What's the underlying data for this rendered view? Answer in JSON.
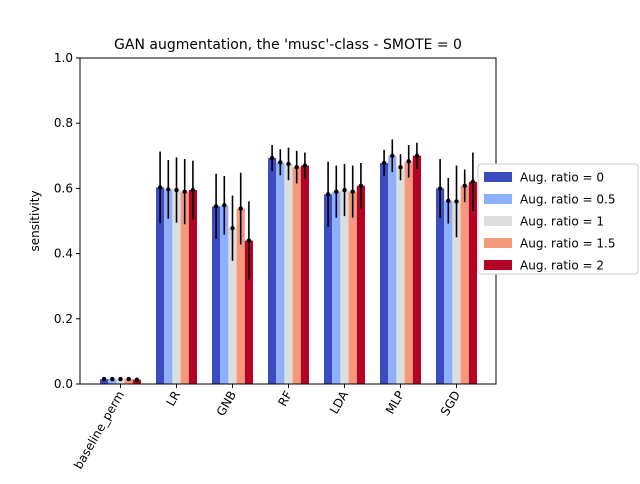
{
  "chart_data": {
    "type": "bar",
    "title": "GAN augmentation, the 'musc'-class - SMOTE = 0",
    "xlabel": "",
    "ylabel": "sensitivity",
    "ylim": [
      0,
      1.0
    ],
    "yticks": [
      "0.0",
      "0.2",
      "0.4",
      "0.6",
      "0.8",
      "1.0"
    ],
    "categories": [
      "baseline_perm",
      "LR",
      "GNB",
      "RF",
      "LDA",
      "MLP",
      "SGD"
    ],
    "legend_position": "outside-right",
    "grid": false,
    "series": [
      {
        "name": "Aug. ratio = 0",
        "color": "#3b4cc0",
        "values": [
          0.015,
          0.603,
          0.545,
          0.693,
          0.582,
          0.678,
          0.6
        ],
        "errors": [
          0.005,
          0.11,
          0.1,
          0.04,
          0.1,
          0.04,
          0.09
        ]
      },
      {
        "name": "Aug. ratio = 0.5",
        "color": "#8db0fe",
        "values": [
          0.015,
          0.597,
          0.548,
          0.68,
          0.59,
          0.7,
          0.562
        ],
        "errors": [
          0.005,
          0.09,
          0.09,
          0.04,
          0.08,
          0.05,
          0.07
        ]
      },
      {
        "name": "Aug. ratio = 1",
        "color": "#dddddd",
        "values": [
          0.015,
          0.595,
          0.478,
          0.675,
          0.595,
          0.665,
          0.56
        ],
        "errors": [
          0.005,
          0.1,
          0.1,
          0.05,
          0.08,
          0.04,
          0.11
        ]
      },
      {
        "name": "Aug. ratio = 1.5",
        "color": "#f49a7b",
        "values": [
          0.015,
          0.59,
          0.538,
          0.665,
          0.59,
          0.683,
          0.608
        ],
        "errors": [
          0.005,
          0.1,
          0.11,
          0.05,
          0.08,
          0.05,
          0.05
        ]
      },
      {
        "name": "Aug. ratio = 2",
        "color": "#b40426",
        "values": [
          0.013,
          0.595,
          0.44,
          0.67,
          0.608,
          0.7,
          0.62
        ],
        "errors": [
          0.005,
          0.09,
          0.12,
          0.04,
          0.07,
          0.04,
          0.09
        ]
      }
    ]
  }
}
